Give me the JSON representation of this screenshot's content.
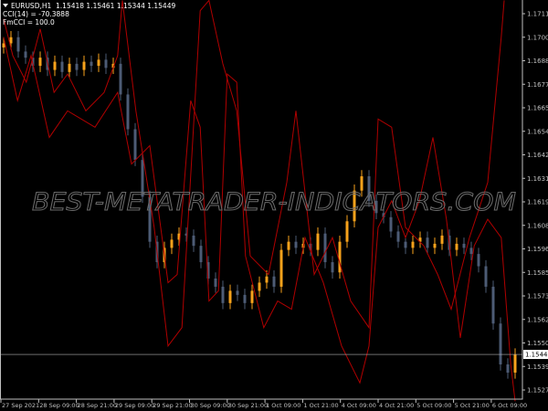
{
  "header": {
    "symbol_line": "EURUSD,H1  1.15418 1.15461 1.15344 1.15449",
    "indicator_1": "CCI(14) = -70.3888",
    "indicator_2": "FmCCI = 100.0"
  },
  "watermark": "BEST-METATRADER-INDICATORS.COM",
  "colors": {
    "background": "#000000",
    "bull_candle": "#f7a21b",
    "bear_candle": "#4d5b75",
    "indicator_line": "#b00000",
    "axis": "#c0c0c0",
    "price_line": "#b0b0b0",
    "watermark_stroke": "#6a6a6a"
  },
  "chart_data": {
    "type": "candlestick",
    "symbol": "EURUSD",
    "timeframe": "H1",
    "ylim": [
      1.1523,
      1.1718
    ],
    "y_ticks": [
      "1.17115",
      "1.17000",
      "1.16885",
      "1.16770",
      "1.16655",
      "1.16540",
      "1.16425",
      "1.16310",
      "1.16195",
      "1.16080",
      "1.15965",
      "1.15850",
      "1.15735",
      "1.15620",
      "1.15505",
      "1.15390",
      "1.15275"
    ],
    "x_ticks": [
      "27 Sep 2021",
      "28 Sep 09:00",
      "28 Sep 21:00",
      "29 Sep 09:00",
      "29 Sep 21:00",
      "30 Sep 09:00",
      "30 Sep 21:00",
      "1 Oct 09:00",
      "1 Oct 21:00",
      "4 Oct 09:00",
      "4 Oct 21:00",
      "5 Oct 09:00",
      "5 Oct 21:00",
      "6 Oct 09:00"
    ],
    "current_price": "1.15449",
    "close": [
      1.1697,
      1.17,
      1.1693,
      1.169,
      1.1686,
      1.169,
      1.1684,
      1.1688,
      1.1683,
      1.1687,
      1.1684,
      1.1688,
      1.1686,
      1.1689,
      1.1685,
      1.1687,
      1.1672,
      1.1655,
      1.164,
      1.1622,
      1.16,
      1.159,
      1.1597,
      1.1601,
      1.1604,
      1.1603,
      1.1598,
      1.159,
      1.1582,
      1.1578,
      1.157,
      1.1576,
      1.1574,
      1.157,
      1.1576,
      1.158,
      1.1583,
      1.1578,
      1.1596,
      1.16,
      1.1597,
      1.1599,
      1.1596,
      1.1604,
      1.159,
      1.1585,
      1.16,
      1.161,
      1.1625,
      1.1632,
      1.162,
      1.1614,
      1.1612,
      1.1605,
      1.16,
      1.1597,
      1.16,
      1.1602,
      1.1597,
      1.1599,
      1.1603,
      1.1596,
      1.1599,
      1.1597,
      1.1594,
      1.1588,
      1.1578,
      1.156,
      1.154,
      1.1536,
      1.15449
    ],
    "first_open": 1.1695,
    "lines": [
      {
        "x": [
          0,
          1.25,
          3.1,
          5,
          6.9,
          8.75,
          11.25,
          13.75,
          15.6,
          16.25,
          18.1,
          20.6,
          22.5,
          24.4,
          26.9,
          28.1,
          30,
          31.9,
          33.75,
          36.25,
          38.75,
          40,
          42.5,
          45,
          47.5,
          50,
          51.25,
          53.1,
          55,
          57.5,
          59.4,
          61.25,
          63.75,
          66.25,
          68.1,
          68.5
        ],
        "y": [
          1.1709,
          1.1691,
          1.1678,
          1.1704,
          1.1673,
          1.1682,
          1.1664,
          1.1673,
          1.1691,
          1.1718,
          1.1664,
          1.1607,
          1.1549,
          1.1558,
          1.1713,
          1.1718,
          1.1687,
          1.1664,
          1.1593,
          1.1584,
          1.1629,
          1.1664,
          1.1584,
          1.1602,
          1.1571,
          1.1558,
          1.166,
          1.1656,
          1.1607,
          1.1598,
          1.1584,
          1.1567,
          1.1602,
          1.1629,
          1.17,
          1.1718
        ]
      },
      {
        "x": [
          0,
          1.9,
          3.75,
          6.25,
          8.75,
          12.5,
          15.6,
          17.5,
          20,
          22.5,
          23.75,
          25.6,
          26.9,
          28.1,
          29.4,
          30.6,
          31.9,
          33.1,
          35.6,
          37.5,
          39.4,
          41.25,
          43.75,
          46.25,
          48.75,
          50,
          51.25,
          53.1,
          55,
          56.9,
          58.75,
          60.6,
          62.5,
          64.4,
          66.25,
          68.1,
          69.4,
          70
        ],
        "y": [
          1.17,
          1.1669,
          1.1691,
          1.1651,
          1.1664,
          1.1656,
          1.1673,
          1.1638,
          1.1647,
          1.158,
          1.1584,
          1.1669,
          1.1656,
          1.1571,
          1.1576,
          1.1682,
          1.1678,
          1.1593,
          1.1558,
          1.1571,
          1.1567,
          1.1602,
          1.158,
          1.1549,
          1.1531,
          1.1549,
          1.1607,
          1.162,
          1.1602,
          1.162,
          1.1651,
          1.1611,
          1.1553,
          1.1598,
          1.1611,
          1.1602,
          1.154,
          1.1522
        ]
      }
    ]
  }
}
